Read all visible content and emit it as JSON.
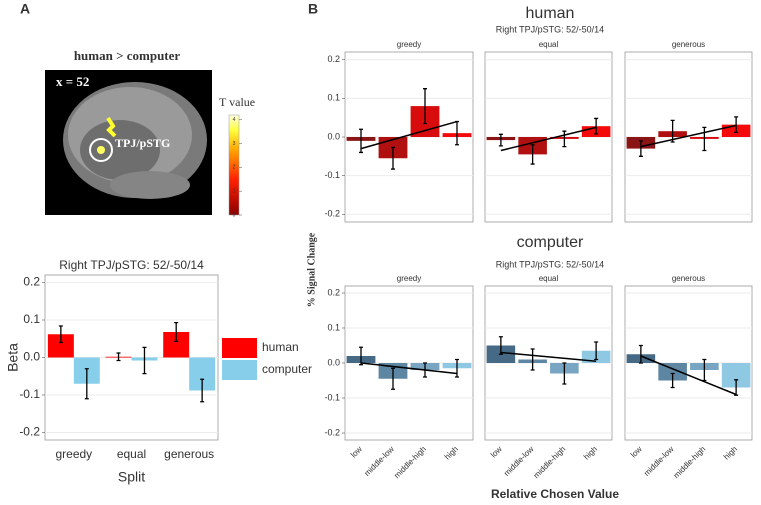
{
  "figure": {
    "panel_labels": [
      "A",
      "B"
    ],
    "brain": {
      "title": "human > computer",
      "slice": "x = 52",
      "region": "TPJ/pSTG",
      "colorbar_title": "T value",
      "colorbar_lim": [
        0,
        4.2
      ],
      "colorbar_ticks": [
        0,
        1,
        2,
        3,
        4
      ]
    }
  },
  "chart_data": [
    {
      "type": "grouped_bar",
      "title": "Right TPJ/pSTG: 52/-50/14",
      "xlabel": "Split",
      "ylabel": "Beta",
      "categories": [
        "greedy",
        "equal",
        "generous"
      ],
      "series": [
        {
          "name": "human",
          "color": "#ff0000",
          "values": [
            0.062,
            0.002,
            0.068
          ],
          "errors": [
            0.022,
            0.01,
            0.025
          ]
        },
        {
          "name": "computer",
          "color": "#87ceeb",
          "values": [
            -0.07,
            -0.008,
            -0.088
          ],
          "errors": [
            0.04,
            0.035,
            0.03
          ]
        }
      ],
      "ylim": [
        -0.22,
        0.22
      ],
      "yticks": [
        -0.2,
        -0.1,
        {
          "value": 0,
          "label": "0.0"
        },
        0.1,
        0.2
      ],
      "grid": true,
      "legend": "right"
    },
    {
      "type": "faceted_bar",
      "title": "human",
      "subtitle": "Right TPJ/pSTG: 52/-50/14",
      "ylabel": "% Signal Change",
      "ylim": [
        -0.22,
        0.22
      ],
      "yticks": [
        -0.2,
        -0.1,
        {
          "value": 0,
          "label": "0.0"
        },
        0.1,
        0.2
      ],
      "grid": true,
      "facets": [
        {
          "title": "greedy",
          "values": [
            -0.01,
            -0.055,
            0.08,
            0.01
          ],
          "errors": [
            0.03,
            0.028,
            0.045,
            0.03
          ],
          "colors": [
            "#8b1414",
            "#b01010",
            "#d80c0c",
            "#f40a0a"
          ],
          "trend": [
            -0.03,
            0.04
          ]
        },
        {
          "title": "equal",
          "values": [
            -0.008,
            -0.045,
            -0.005,
            0.028
          ],
          "errors": [
            0.015,
            0.025,
            0.02,
            0.02
          ],
          "colors": [
            "#8b1414",
            "#b01010",
            "#d80c0c",
            "#f40a0a"
          ],
          "trend": [
            -0.035,
            0.025
          ]
        },
        {
          "title": "generous",
          "values": [
            -0.03,
            0.015,
            -0.005,
            0.032
          ],
          "errors": [
            0.02,
            0.028,
            0.03,
            0.02
          ],
          "colors": [
            "#8b1414",
            "#b01010",
            "#d80c0c",
            "#f40a0a"
          ],
          "trend": [
            -0.025,
            0.03
          ]
        }
      ]
    },
    {
      "type": "faceted_bar",
      "title": "computer",
      "subtitle": "Right TPJ/pSTG: 52/-50/14",
      "xlabel": "Relative Chosen Value",
      "categories": [
        "low",
        "middle-low",
        "middle-high",
        "high"
      ],
      "ylim": [
        -0.22,
        0.22
      ],
      "yticks": [
        -0.2,
        -0.1,
        {
          "value": 0,
          "label": "0.0"
        },
        0.1,
        0.2
      ],
      "grid": true,
      "facets": [
        {
          "title": "greedy",
          "values": [
            0.02,
            -0.045,
            -0.02,
            -0.015
          ],
          "errors": [
            0.025,
            0.03,
            0.02,
            0.025
          ],
          "colors": [
            "#466a85",
            "#5d86a3",
            "#77a5c2",
            "#8ec8e3"
          ],
          "trend": [
            0.0,
            -0.03
          ]
        },
        {
          "title": "equal",
          "values": [
            0.05,
            0.01,
            -0.03,
            0.035
          ],
          "errors": [
            0.025,
            0.03,
            0.03,
            0.025
          ],
          "colors": [
            "#466a85",
            "#5d86a3",
            "#77a5c2",
            "#8ec8e3"
          ],
          "trend": [
            0.03,
            0.005
          ]
        },
        {
          "title": "generous",
          "values": [
            0.025,
            -0.05,
            -0.02,
            -0.07
          ],
          "errors": [
            0.025,
            0.02,
            0.03,
            0.022
          ],
          "colors": [
            "#466a85",
            "#5d86a3",
            "#77a5c2",
            "#8ec8e3"
          ],
          "trend": [
            0.02,
            -0.09
          ]
        }
      ]
    }
  ]
}
